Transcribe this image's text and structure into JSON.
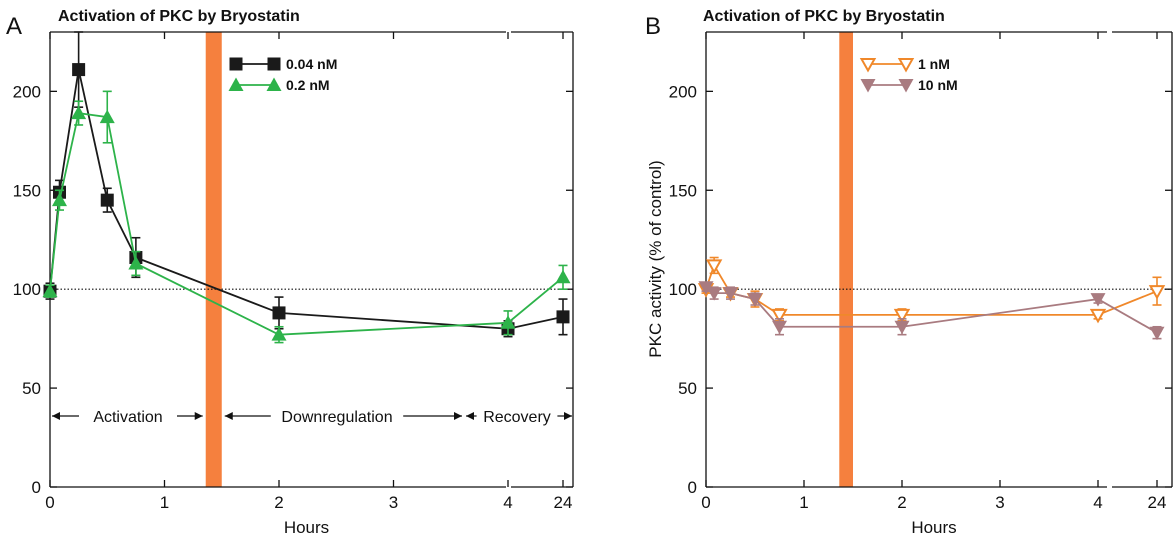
{
  "chart_data": [
    {
      "type": "line",
      "panel_label": "A",
      "title": "Activation of PKC by Bryostatin",
      "xlabel": "Hours",
      "ylabel": "",
      "ylim": [
        0,
        230
      ],
      "y_ticks": [
        "0",
        "50",
        "100",
        "150",
        "200"
      ],
      "x_ticks": [
        "0",
        "1",
        "2",
        "3",
        "4",
        "24"
      ],
      "x_axis_break": "between 4 and 24 hours",
      "reference_line": 100,
      "treatment_band_hours": [
        1.36,
        1.5
      ],
      "treatment_band_color": "#f5803e",
      "legend_position": "top, right of treatment band",
      "phases": [
        "Activation",
        "Downregulation",
        "Recovery"
      ],
      "series": [
        {
          "name": "0.04 nM",
          "marker": "filled-square",
          "color": "#1a1a1a",
          "x": [
            0,
            0.083,
            0.25,
            0.5,
            0.75,
            2,
            4,
            24
          ],
          "y": [
            99,
            149,
            211,
            145,
            116,
            88,
            80,
            86
          ],
          "error": [
            4,
            6,
            19,
            6,
            10,
            8,
            4,
            9
          ]
        },
        {
          "name": "0.2 nM",
          "marker": "filled-triangle-up",
          "color": "#2db34a",
          "x": [
            0,
            0.083,
            0.25,
            0.5,
            0.75,
            2,
            4,
            24
          ],
          "y": [
            99,
            145,
            189,
            187,
            113,
            77,
            83,
            106
          ],
          "error": [
            3,
            5,
            6,
            13,
            6,
            4,
            6,
            6
          ]
        }
      ]
    },
    {
      "type": "line",
      "panel_label": "B",
      "title": "Activation of PKC by Bryostatin",
      "xlabel": "Hours",
      "ylabel": "PKC activity (% of control)",
      "ylim": [
        0,
        230
      ],
      "y_ticks": [
        "0",
        "50",
        "100",
        "150",
        "200"
      ],
      "x_ticks": [
        "0",
        "1",
        "2",
        "3",
        "4",
        "24"
      ],
      "x_axis_break": "between 4 and 24 hours",
      "reference_line": 100,
      "treatment_band_hours": [
        1.36,
        1.5
      ],
      "treatment_band_color": "#f5803e",
      "legend_position": "top, right of treatment band",
      "series": [
        {
          "name": "1 nM",
          "marker": "open-triangle-down",
          "color": "#f0882a",
          "x": [
            0,
            0.083,
            0.25,
            0.5,
            0.75,
            2,
            4,
            24
          ],
          "y": [
            100,
            112,
            98,
            95,
            87,
            87,
            87,
            99
          ],
          "error": [
            2,
            4,
            2,
            4,
            3,
            3,
            2,
            7
          ]
        },
        {
          "name": "10 nM",
          "marker": "filled-triangle-down",
          "color": "#a97b80",
          "x": [
            0,
            0.083,
            0.25,
            0.5,
            0.75,
            2,
            4,
            24
          ],
          "y": [
            101,
            98,
            98,
            95,
            81,
            81,
            95,
            78
          ],
          "error": [
            2,
            3,
            3,
            3,
            4,
            4,
            2,
            3
          ]
        }
      ]
    }
  ]
}
